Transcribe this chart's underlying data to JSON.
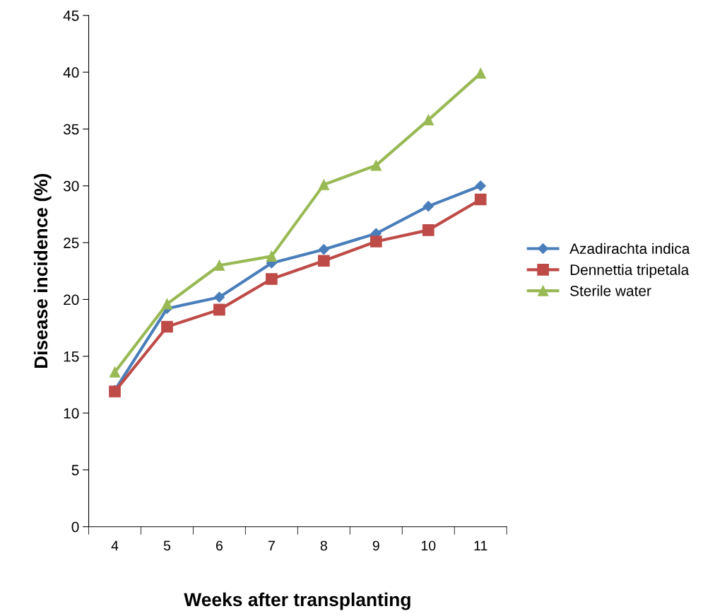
{
  "chart_data": {
    "type": "line",
    "xlabel": "Weeks after transplanting",
    "ylabel": "Disease incidence (%)",
    "categories": [
      "4",
      "5",
      "6",
      "7",
      "8",
      "9",
      "10",
      "11"
    ],
    "series": [
      {
        "name": "Azadirachta indica",
        "color": "#4a7ebb",
        "marker": "diamond",
        "values": [
          12.0,
          19.2,
          20.2,
          23.2,
          24.4,
          25.8,
          28.2,
          30.0
        ]
      },
      {
        "name": "Dennettia tripetala",
        "color": "#be4b48",
        "marker": "square",
        "values": [
          11.9,
          17.6,
          19.1,
          21.8,
          23.4,
          25.1,
          26.1,
          28.8
        ]
      },
      {
        "name": "Sterile water",
        "color": "#98b954",
        "marker": "triangle",
        "values": [
          13.6,
          19.6,
          23.0,
          23.8,
          30.1,
          31.8,
          35.8,
          39.9
        ]
      }
    ],
    "ylim": [
      0,
      45
    ],
    "yticks": [
      0,
      5,
      10,
      15,
      20,
      25,
      30,
      35,
      40,
      45
    ],
    "grid": false,
    "legend": "right",
    "line_style": "solid"
  }
}
